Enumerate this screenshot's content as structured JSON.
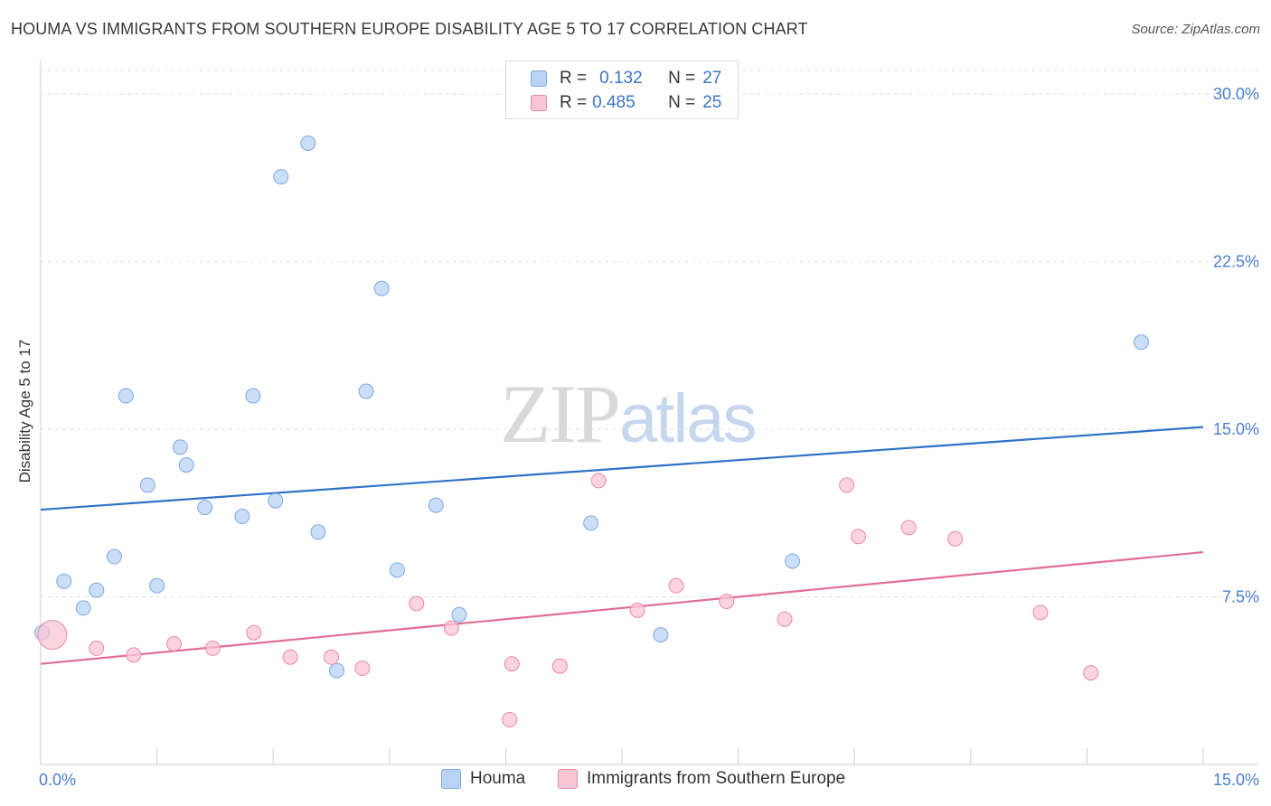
{
  "header": {
    "title": "HOUMA VS IMMIGRANTS FROM SOUTHERN EUROPE DISABILITY AGE 5 TO 17 CORRELATION CHART",
    "source": "Source: ZipAtlas.com"
  },
  "watermark": {
    "zip": "ZIP",
    "atlas": "atlas"
  },
  "stats": [
    {
      "r_label": "R =",
      "r_value": "0.132",
      "n_label": "N =",
      "n_value": "27",
      "color": "#b9d3f5",
      "border": "#7ea9e0"
    },
    {
      "r_label": "R =",
      "r_value": "0.485",
      "n_label": "N =",
      "n_value": "25",
      "color": "#f9c6d6",
      "border": "#e98aa8"
    }
  ],
  "legend": {
    "series1": "Houma",
    "series2": "Immigrants from Southern Europe"
  },
  "chart_data": {
    "type": "scatter",
    "title": "HOUMA VS IMMIGRANTS FROM SOUTHERN EUROPE DISABILITY AGE 5 TO 17 CORRELATION CHART",
    "xlabel": "",
    "ylabel": "Disability Age 5 to 17",
    "xlim": [
      0,
      15
    ],
    "ylim": [
      0,
      31.5
    ],
    "x_tick_labels": [
      {
        "value": 0,
        "label": "0.0%"
      },
      {
        "value": 15,
        "label": "15.0%"
      }
    ],
    "y_tick_labels": [
      {
        "value": 7.5,
        "label": "7.5%"
      },
      {
        "value": 15,
        "label": "15.0%"
      },
      {
        "value": 22.5,
        "label": "22.5%"
      },
      {
        "value": 30,
        "label": "30.0%"
      }
    ],
    "x_minor_ticks": [
      0,
      1.5,
      3,
      4.5,
      6,
      7.5,
      9,
      10.5,
      12,
      13.5,
      15
    ],
    "series": [
      {
        "name": "Houma",
        "color": "#b9d3f5",
        "stroke": "#7ea9e0",
        "line_color": "#2f72c8",
        "trend": {
          "x": [
            0,
            15
          ],
          "y": [
            11.4,
            15.1
          ]
        },
        "points": [
          [
            0.02,
            5.9
          ],
          [
            0.3,
            8.2
          ],
          [
            0.55,
            7.0
          ],
          [
            0.72,
            7.8
          ],
          [
            0.95,
            9.3
          ],
          [
            1.1,
            16.5
          ],
          [
            1.38,
            12.5
          ],
          [
            1.5,
            8.0
          ],
          [
            1.8,
            14.2
          ],
          [
            1.88,
            13.4
          ],
          [
            2.12,
            11.5
          ],
          [
            2.6,
            11.1
          ],
          [
            2.74,
            16.5
          ],
          [
            3.1,
            26.3
          ],
          [
            3.03,
            11.8
          ],
          [
            3.45,
            27.8
          ],
          [
            3.58,
            10.4
          ],
          [
            3.82,
            4.2
          ],
          [
            4.2,
            16.7
          ],
          [
            4.4,
            21.3
          ],
          [
            4.6,
            8.7
          ],
          [
            5.1,
            11.6
          ],
          [
            5.4,
            6.7
          ],
          [
            7.1,
            10.8
          ],
          [
            8.0,
            5.8
          ],
          [
            9.7,
            9.1
          ],
          [
            14.2,
            18.9
          ]
        ]
      },
      {
        "name": "Immigrants from Southern Europe",
        "color": "#f9c6d6",
        "stroke": "#e98aa8",
        "line_color": "#e26d96",
        "trend": {
          "x": [
            0,
            15
          ],
          "y": [
            4.5,
            9.5
          ]
        },
        "points": [
          [
            0.15,
            5.8
          ],
          [
            0.72,
            5.2
          ],
          [
            1.2,
            4.9
          ],
          [
            1.72,
            5.4
          ],
          [
            2.22,
            5.2
          ],
          [
            2.75,
            5.9
          ],
          [
            3.22,
            4.8
          ],
          [
            3.75,
            4.8
          ],
          [
            4.15,
            4.3
          ],
          [
            4.85,
            7.2
          ],
          [
            5.3,
            6.1
          ],
          [
            6.05,
            2.0
          ],
          [
            6.08,
            4.5
          ],
          [
            6.7,
            4.4
          ],
          [
            7.2,
            12.7
          ],
          [
            7.7,
            6.9
          ],
          [
            8.2,
            8.0
          ],
          [
            8.85,
            7.3
          ],
          [
            9.6,
            6.5
          ],
          [
            10.4,
            12.5
          ],
          [
            10.55,
            10.2
          ],
          [
            11.2,
            10.6
          ],
          [
            11.8,
            10.1
          ],
          [
            12.9,
            6.8
          ],
          [
            13.55,
            4.1
          ]
        ]
      }
    ]
  }
}
